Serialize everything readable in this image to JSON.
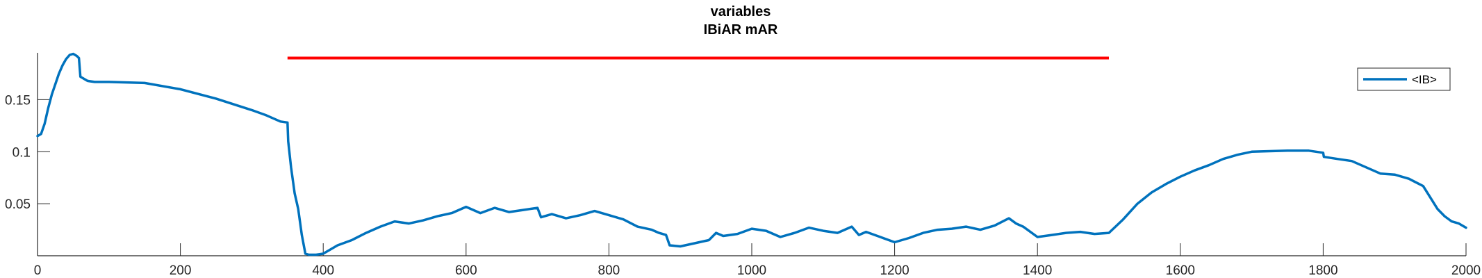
{
  "chart_data": {
    "type": "line",
    "title": "variables",
    "subtitle": "IBiAR mAR",
    "xlim": [
      0,
      2000
    ],
    "ylim": [
      0,
      0.195
    ],
    "x_ticks": [
      0,
      200,
      400,
      600,
      800,
      1000,
      1200,
      1400,
      1600,
      1800,
      2000
    ],
    "x_tick_labels": [
      "0",
      "200",
      "400",
      "600",
      "800",
      "1000",
      "1200",
      "1400",
      "1600",
      "1800",
      "2000"
    ],
    "y_ticks": [
      0.05,
      0.1,
      0.15
    ],
    "y_tick_labels": [
      "0.05",
      "0.1",
      "0.15"
    ],
    "grid": false,
    "legend_position": "top-right",
    "series": [
      {
        "name": "<IB>",
        "color": "#0072BD",
        "x": [
          0,
          5,
          10,
          15,
          20,
          25,
          30,
          35,
          40,
          45,
          50,
          55,
          58,
          60,
          65,
          70,
          80,
          100,
          150,
          200,
          250,
          300,
          320,
          340,
          350,
          351,
          355,
          360,
          365,
          370,
          375,
          380,
          390,
          400,
          410,
          420,
          440,
          460,
          480,
          500,
          520,
          540,
          560,
          580,
          600,
          620,
          640,
          660,
          680,
          700,
          705,
          720,
          740,
          760,
          780,
          800,
          820,
          840,
          860,
          870,
          880,
          885,
          900,
          920,
          940,
          950,
          960,
          980,
          1000,
          1020,
          1040,
          1060,
          1080,
          1100,
          1120,
          1140,
          1150,
          1160,
          1180,
          1200,
          1220,
          1240,
          1260,
          1280,
          1300,
          1320,
          1340,
          1360,
          1370,
          1380,
          1400,
          1420,
          1440,
          1460,
          1480,
          1500,
          1520,
          1540,
          1560,
          1580,
          1600,
          1620,
          1640,
          1660,
          1680,
          1700,
          1750,
          1780,
          1800,
          1801,
          1820,
          1840,
          1860,
          1880,
          1900,
          1920,
          1940,
          1960,
          1970,
          1980,
          1990,
          2000
        ],
        "y": [
          0.115,
          0.117,
          0.127,
          0.142,
          0.155,
          0.165,
          0.175,
          0.183,
          0.189,
          0.193,
          0.194,
          0.192,
          0.19,
          0.172,
          0.17,
          0.168,
          0.167,
          0.167,
          0.166,
          0.16,
          0.151,
          0.14,
          0.135,
          0.129,
          0.128,
          0.11,
          0.085,
          0.06,
          0.045,
          0.02,
          0.002,
          0.001,
          0.001,
          0.002,
          0.006,
          0.01,
          0.015,
          0.022,
          0.028,
          0.033,
          0.031,
          0.034,
          0.038,
          0.041,
          0.047,
          0.041,
          0.046,
          0.042,
          0.044,
          0.046,
          0.037,
          0.04,
          0.036,
          0.039,
          0.043,
          0.039,
          0.035,
          0.028,
          0.025,
          0.022,
          0.02,
          0.01,
          0.009,
          0.012,
          0.015,
          0.022,
          0.019,
          0.021,
          0.026,
          0.024,
          0.018,
          0.022,
          0.027,
          0.024,
          0.022,
          0.028,
          0.02,
          0.023,
          0.018,
          0.013,
          0.017,
          0.022,
          0.025,
          0.026,
          0.028,
          0.025,
          0.029,
          0.036,
          0.031,
          0.028,
          0.018,
          0.02,
          0.022,
          0.023,
          0.021,
          0.022,
          0.035,
          0.05,
          0.061,
          0.069,
          0.076,
          0.082,
          0.087,
          0.093,
          0.097,
          0.1,
          0.101,
          0.101,
          0.099,
          0.095,
          0.093,
          0.091,
          0.085,
          0.079,
          0.078,
          0.074,
          0.067,
          0.045,
          0.038,
          0.033,
          0.031,
          0.027
        ]
      }
    ],
    "annotations": [
      {
        "type": "horizontal-line",
        "x_start": 350,
        "x_end": 1500,
        "y": 0.19,
        "color": "#FF0000"
      }
    ]
  }
}
